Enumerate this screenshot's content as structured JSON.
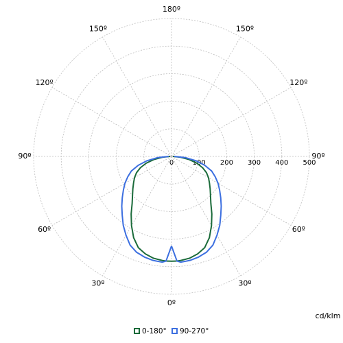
{
  "chart_data": {
    "type": "polar",
    "x": [
      0,
      3,
      5,
      10,
      15,
      20,
      25,
      30,
      35,
      40,
      45,
      50,
      55,
      60,
      65,
      70,
      75,
      80,
      85,
      90
    ],
    "series": [
      {
        "name": "0-180°",
        "color": "#1b6b3a",
        "values": [
          380,
          380,
          379,
          375,
          366,
          352,
          325,
          290,
          255,
          222,
          200,
          183,
          168,
          155,
          140,
          120,
          95,
          65,
          32,
          5
        ]
      },
      {
        "name": "90-270°",
        "color": "#3c6fe0",
        "values": [
          325,
          380,
          385,
          383,
          378,
          370,
          355,
          330,
          305,
          278,
          255,
          233,
          213,
          195,
          175,
          155,
          125,
          90,
          50,
          10
        ]
      }
    ],
    "rlim": [
      0,
      500
    ],
    "rticks": [
      0,
      100,
      200,
      300,
      400,
      500
    ],
    "angle_ticks": [
      {
        "value": 0,
        "label": "0º"
      },
      {
        "value": 30,
        "label": "30º"
      },
      {
        "value": 60,
        "label": "60º"
      },
      {
        "value": 90,
        "label": "90º"
      },
      {
        "value": 120,
        "label": "120º"
      },
      {
        "value": 150,
        "label": "150º"
      },
      {
        "value": 180,
        "label": "180º"
      }
    ],
    "unit_label": "cd/klm",
    "grid": true
  }
}
